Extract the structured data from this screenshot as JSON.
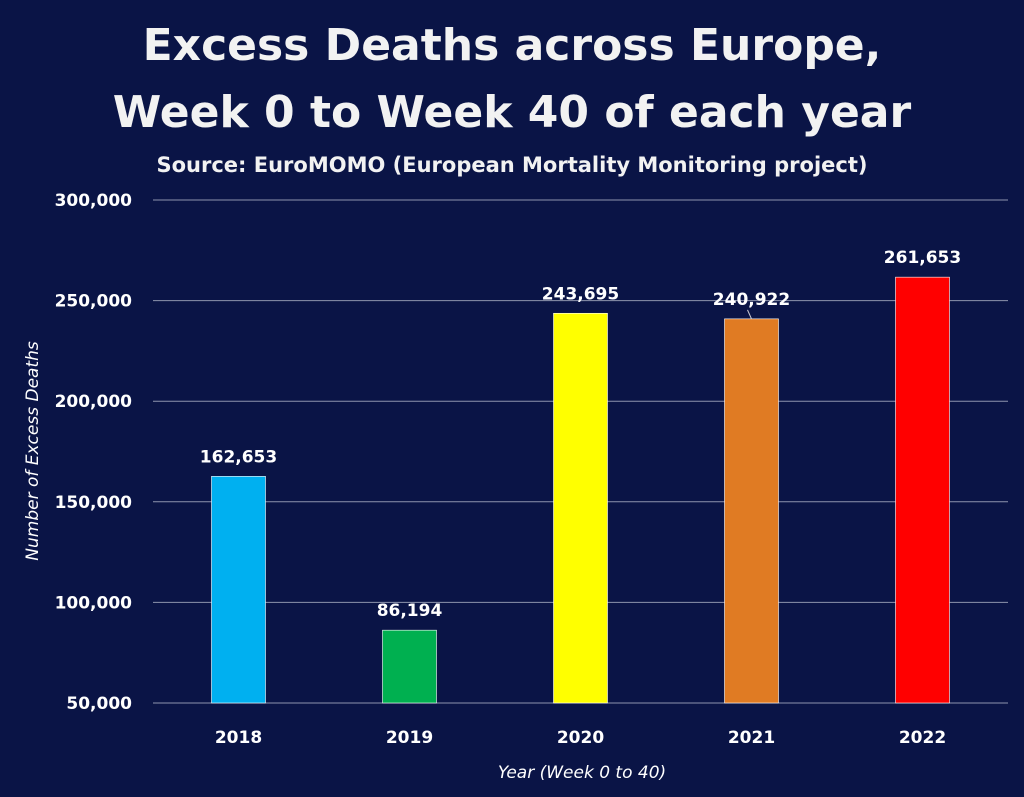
{
  "chart_data": {
    "type": "bar",
    "title_line1": "Excess Deaths across Europe,",
    "title_line2": "Week 0 to Week 40 of each year",
    "subtitle": "Source: EuroMOMO (European Mortality Monitoring project)",
    "xlabel": "Year (Week 0 to 40)",
    "ylabel": "Number of Excess Deaths",
    "categories": [
      "2018",
      "2019",
      "2020",
      "2021",
      "2022"
    ],
    "values": [
      162653,
      86194,
      243695,
      240922,
      261653
    ],
    "value_labels": [
      "162,653",
      "86,194",
      "243,695",
      "240,922",
      "261,653"
    ],
    "colors": [
      "#00b0f0",
      "#00b050",
      "#ffff00",
      "#e07b23",
      "#ff0000"
    ],
    "ylim": [
      50000,
      300000
    ],
    "yticks": [
      50000,
      100000,
      150000,
      200000,
      250000,
      300000
    ],
    "ytick_labels": [
      "50,000",
      "100,000",
      "150,000",
      "200,000",
      "250,000",
      "300,000"
    ],
    "grid": true,
    "background": "#0a1446"
  }
}
